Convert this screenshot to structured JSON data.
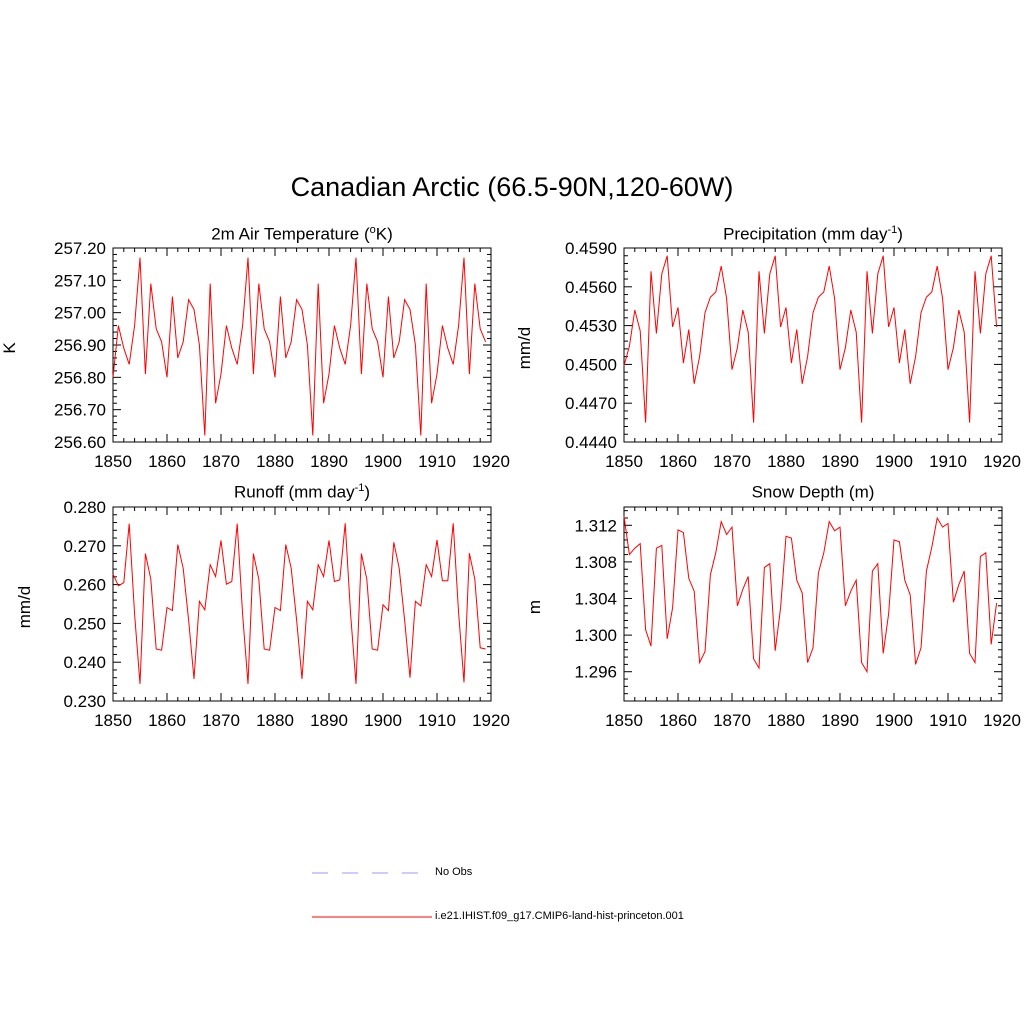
{
  "page": {
    "title": "Canadian Arctic (66.5-90N,120-60W)"
  },
  "legend": {
    "obs_label": "No Obs",
    "obs_color": "#9999ff",
    "model_label": "i.e21.IHIST.f09_g17.CMIP6-land-hist-princeton.001",
    "model_color": "#ff0000"
  },
  "chart_data": [
    {
      "type": "line",
      "title_main": "2m Air Temperature (",
      "title_sup": "o",
      "title_tail": "K)",
      "ylabel": "K",
      "xlim": [
        1850,
        1920
      ],
      "ylim": [
        256.6,
        257.2
      ],
      "xticks": [
        "1850",
        "1860",
        "1870",
        "1880",
        "1890",
        "1900",
        "1910",
        "1920"
      ],
      "yticks": [
        "256.60",
        "256.70",
        "256.80",
        "256.90",
        "257.00",
        "257.10",
        "257.20"
      ],
      "color": "#ff0000",
      "x_start": 1850,
      "values": [
        256.8,
        256.96,
        256.89,
        256.84,
        256.96,
        257.17,
        256.81,
        257.09,
        256.95,
        256.91,
        256.8,
        257.05,
        256.86,
        256.91,
        257.04,
        257.01,
        256.9,
        256.62,
        257.09,
        256.72,
        256.81,
        256.96,
        256.89,
        256.84,
        256.96,
        257.17,
        256.81,
        257.09,
        256.95,
        256.91,
        256.8,
        257.05,
        256.86,
        256.91,
        257.04,
        257.01,
        256.9,
        256.62,
        257.09,
        256.72,
        256.81,
        256.96,
        256.89,
        256.84,
        256.96,
        257.17,
        256.81,
        257.09,
        256.95,
        256.91,
        256.8,
        257.05,
        256.86,
        256.91,
        257.04,
        257.01,
        256.9,
        256.62,
        257.09,
        256.72,
        256.81,
        256.96,
        256.89,
        256.84,
        256.96,
        257.17,
        256.81,
        257.09,
        256.95,
        256.91
      ]
    },
    {
      "type": "line",
      "title_main": "Precipitation (mm day",
      "title_sup": "-1",
      "title_tail": ")",
      "ylabel": "mm/d",
      "xlim": [
        1850,
        1920
      ],
      "ylim": [
        0.444,
        0.459
      ],
      "xticks": [
        "1850",
        "1860",
        "1870",
        "1880",
        "1890",
        "1900",
        "1910",
        "1920"
      ],
      "yticks": [
        "0.4440",
        "0.4470",
        "0.4500",
        "0.4530",
        "0.4560",
        "0.4590"
      ],
      "color": "#ff0000",
      "x_start": 1850,
      "values": [
        0.4499,
        0.4514,
        0.4542,
        0.4526,
        0.4455,
        0.4572,
        0.4524,
        0.457,
        0.4584,
        0.4529,
        0.4544,
        0.4501,
        0.4527,
        0.4485,
        0.4506,
        0.454,
        0.4552,
        0.4556,
        0.4576,
        0.4551,
        0.4496,
        0.4513,
        0.4542,
        0.4525,
        0.4455,
        0.4572,
        0.4524,
        0.457,
        0.4584,
        0.4529,
        0.4544,
        0.4501,
        0.4527,
        0.4485,
        0.4506,
        0.454,
        0.4552,
        0.4556,
        0.4576,
        0.4551,
        0.4496,
        0.4513,
        0.4542,
        0.4525,
        0.4455,
        0.4572,
        0.4524,
        0.457,
        0.4584,
        0.4529,
        0.4544,
        0.4501,
        0.4527,
        0.4485,
        0.4506,
        0.454,
        0.4552,
        0.4556,
        0.4576,
        0.4551,
        0.4496,
        0.4513,
        0.4542,
        0.4525,
        0.4455,
        0.4572,
        0.4524,
        0.457,
        0.4584,
        0.4529
      ]
    },
    {
      "type": "line",
      "title_main": "Runoff (mm day",
      "title_sup": "-1",
      "title_tail": ")",
      "ylabel": "mm/d",
      "xlim": [
        1850,
        1920
      ],
      "ylim": [
        0.23,
        0.28
      ],
      "xticks": [
        "1850",
        "1860",
        "1870",
        "1880",
        "1890",
        "1900",
        "1910",
        "1920"
      ],
      "yticks": [
        "0.230",
        "0.240",
        "0.250",
        "0.260",
        "0.270",
        "0.280"
      ],
      "color": "#ff0000",
      "x_start": 1850,
      "values": [
        0.2627,
        0.2597,
        0.2605,
        0.2757,
        0.2524,
        0.2344,
        0.268,
        0.2614,
        0.2434,
        0.2431,
        0.2541,
        0.2533,
        0.2703,
        0.2642,
        0.2509,
        0.2357,
        0.2557,
        0.2535,
        0.2651,
        0.2621,
        0.2714,
        0.2601,
        0.2608,
        0.2757,
        0.2524,
        0.2344,
        0.268,
        0.2614,
        0.2434,
        0.2431,
        0.2541,
        0.2533,
        0.2703,
        0.2642,
        0.2509,
        0.2357,
        0.2557,
        0.2535,
        0.2651,
        0.2621,
        0.2714,
        0.2608,
        0.2612,
        0.2758,
        0.2524,
        0.2344,
        0.268,
        0.2614,
        0.2434,
        0.2431,
        0.2548,
        0.2533,
        0.2709,
        0.2642,
        0.2509,
        0.236,
        0.2557,
        0.2545,
        0.2651,
        0.2621,
        0.2715,
        0.261,
        0.261,
        0.2758,
        0.2527,
        0.2348,
        0.2681,
        0.2614,
        0.2437,
        0.2434
      ]
    },
    {
      "type": "line",
      "title_main": "Snow Depth (m)",
      "title_sup": "",
      "title_tail": "",
      "ylabel": "m",
      "xlim": [
        1850,
        1920
      ],
      "ylim": [
        1.2928,
        1.314
      ],
      "xticks": [
        "1850",
        "1860",
        "1870",
        "1880",
        "1890",
        "1900",
        "1910",
        "1920"
      ],
      "yticks": [
        "1.296",
        "1.300",
        "1.304",
        "1.308",
        "1.312"
      ],
      "color": "#ff0000",
      "x_start": 1850,
      "values": [
        1.313,
        1.3088,
        1.3095,
        1.31,
        1.3006,
        1.2988,
        1.3095,
        1.3098,
        1.2996,
        1.303,
        1.3115,
        1.3112,
        1.3062,
        1.3048,
        1.297,
        1.2982,
        1.3066,
        1.309,
        1.3124,
        1.311,
        1.3118,
        1.3032,
        1.305,
        1.3064,
        1.2974,
        1.2964,
        1.3074,
        1.3078,
        1.2983,
        1.303,
        1.3108,
        1.3106,
        1.306,
        1.3046,
        1.297,
        1.2986,
        1.3068,
        1.309,
        1.3124,
        1.3114,
        1.3118,
        1.3032,
        1.3048,
        1.306,
        1.297,
        1.296,
        1.307,
        1.3078,
        1.298,
        1.3023,
        1.3104,
        1.3102,
        1.306,
        1.3044,
        1.2968,
        1.2986,
        1.307,
        1.3096,
        1.3128,
        1.3118,
        1.3122,
        1.3036,
        1.3055,
        1.307,
        1.298,
        1.297,
        1.3086,
        1.309,
        1.299,
        1.3035
      ]
    }
  ]
}
